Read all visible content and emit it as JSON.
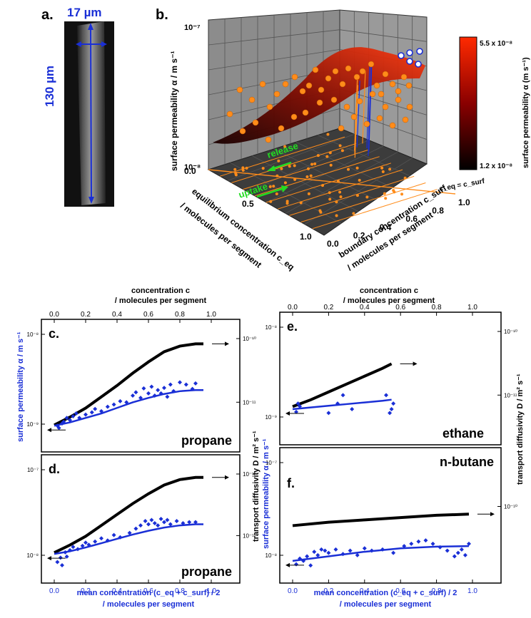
{
  "panel_a": {
    "letter": "a.",
    "width_label": "17 µm",
    "length_label": "130 µm"
  },
  "panel_b": {
    "letter": "b.",
    "z_axis_label": "surface permeability α / m s⁻¹",
    "z_top": "10⁻⁷",
    "z_bottom": "10⁻⁸",
    "x_axis_label": "equilibrium concentration c_eq",
    "x_axis_label2": "/ molecules per segment",
    "x_ticks": [
      "0.0",
      "0.5",
      "1.0"
    ],
    "y_axis_label": "boundary concentration c_surf",
    "y_axis_label2": "/ molecules per segment",
    "y_ticks": [
      "0.0",
      "0.2",
      "0.4",
      "0.6",
      "0.8",
      "1.0"
    ],
    "diag_label": "c_eq = c_surf",
    "release_label": "release",
    "uptake_label": "uptake",
    "colorbar_title": "surface permeability α (m s⁻¹)",
    "colorbar_max": "5.5 x 10⁻⁸",
    "colorbar_min": "1.2 x 10⁻⁸",
    "colors": {
      "surface_low": "#1a0000",
      "surface_high": "#ff2a00",
      "points": "#ff8c1a",
      "drops": "#1a2fd6"
    }
  },
  "top_axis_left": {
    "title": "concentration c",
    "subtitle": "/ molecules per segment",
    "ticks": [
      "0.0",
      "0.2",
      "0.4",
      "0.6",
      "0.8",
      "1.0"
    ]
  },
  "top_axis_right": {
    "title": "concentration c",
    "subtitle": "/ molecules per segment",
    "ticks": [
      "0.0",
      "0.2",
      "0.4",
      "0.6",
      "0.8",
      "1.0"
    ]
  },
  "bottom_axis_left": {
    "title": "mean concentration (c_eq + c_surf) / 2",
    "subtitle": "/ molecules per segment",
    "ticks": [
      "0.0",
      "0.2",
      "0.4",
      "0.6",
      "0.8",
      "1.0"
    ]
  },
  "bottom_axis_right": {
    "title": "mean concentration (c_eq + c_surf) / 2",
    "subtitle": "/ molecules per segment",
    "ticks": [
      "0.0",
      "0.2",
      "0.4",
      "0.6",
      "0.8",
      "1.0"
    ]
  },
  "left_ylabel": "surface permeability α / m s⁻¹",
  "mid_ylabel_blue": "surface permeability α / m s⁻¹",
  "mid_ylabel_black": "transport diffusivity D / m² s⁻¹",
  "right_ylabel": "transport diffusivity D / m² s⁻¹",
  "chart_data": [
    {
      "type": "scatter",
      "panel": "c.",
      "molecule": "propane",
      "left_ticks": [
        "10⁻⁸",
        "10⁻⁹"
      ],
      "right_ticks": [
        "10⁻¹⁰",
        "10⁻¹¹"
      ],
      "black_curve": {
        "x": [
          0.0,
          0.1,
          0.2,
          0.3,
          0.4,
          0.5,
          0.6,
          0.7,
          0.8,
          0.9,
          0.95
        ],
        "y": [
          0.18,
          0.25,
          0.33,
          0.43,
          0.53,
          0.64,
          0.74,
          0.83,
          0.88,
          0.9,
          0.9
        ]
      },
      "blue_fit": {
        "x": [
          0.0,
          0.1,
          0.2,
          0.3,
          0.4,
          0.5,
          0.6,
          0.7,
          0.8,
          0.9,
          0.95
        ],
        "y": [
          -0.72,
          -0.66,
          -0.58,
          -0.5,
          -0.4,
          -0.3,
          -0.22,
          -0.15,
          -0.1,
          -0.08,
          -0.08
        ]
      },
      "blue_points": {
        "x": [
          0.02,
          0.03,
          0.05,
          0.06,
          0.08,
          0.1,
          0.12,
          0.14,
          0.16,
          0.2,
          0.24,
          0.26,
          0.3,
          0.34,
          0.38,
          0.42,
          0.46,
          0.5,
          0.52,
          0.55,
          0.57,
          0.6,
          0.62,
          0.64,
          0.66,
          0.68,
          0.7,
          0.72,
          0.74,
          0.76,
          0.8,
          0.84,
          0.88,
          0.9
        ],
        "y": [
          -0.72,
          -0.76,
          -0.68,
          -0.65,
          -0.58,
          -0.62,
          -0.55,
          -0.5,
          -0.58,
          -0.52,
          -0.48,
          -0.42,
          -0.46,
          -0.38,
          -0.34,
          -0.28,
          -0.3,
          -0.18,
          -0.12,
          -0.22,
          -0.05,
          -0.14,
          -0.02,
          -0.18,
          -0.08,
          -0.14,
          -0.04,
          -0.2,
          0.02,
          -0.1,
          0.06,
          0.02,
          -0.06,
          0.04
        ]
      }
    },
    {
      "type": "scatter",
      "panel": "d.",
      "molecule": "propane",
      "left_ticks": [
        "10⁻⁷",
        "10⁻⁸"
      ],
      "right_ticks": [
        "10⁻¹⁰",
        "10⁻¹¹"
      ],
      "black_curve": {
        "x": [
          0.0,
          0.1,
          0.2,
          0.3,
          0.4,
          0.5,
          0.6,
          0.7,
          0.8,
          0.9,
          0.95
        ],
        "y": [
          0.22,
          0.29,
          0.37,
          0.47,
          0.57,
          0.67,
          0.76,
          0.84,
          0.89,
          0.91,
          0.91
        ]
      },
      "blue_fit": {
        "x": [
          0.0,
          0.1,
          0.2,
          0.3,
          0.4,
          0.5,
          0.6,
          0.7,
          0.8,
          0.9,
          0.95
        ],
        "y": [
          -0.65,
          -0.6,
          -0.53,
          -0.45,
          -0.37,
          -0.29,
          -0.22,
          -0.16,
          -0.12,
          -0.1,
          -0.1
        ]
      },
      "blue_points": {
        "x": [
          0.02,
          0.04,
          0.05,
          0.07,
          0.08,
          0.1,
          0.12,
          0.15,
          0.18,
          0.2,
          0.22,
          0.26,
          0.3,
          0.34,
          0.38,
          0.42,
          0.48,
          0.52,
          0.55,
          0.58,
          0.6,
          0.62,
          0.64,
          0.66,
          0.68,
          0.7,
          0.72,
          0.74,
          0.78,
          0.82,
          0.86,
          0.9
        ],
        "y": [
          -0.8,
          -0.72,
          -0.86,
          -0.62,
          -0.7,
          -0.58,
          -0.52,
          -0.56,
          -0.5,
          -0.44,
          -0.48,
          -0.42,
          -0.36,
          -0.4,
          -0.3,
          -0.34,
          -0.26,
          -0.18,
          -0.12,
          -0.04,
          -0.1,
          -0.02,
          -0.08,
          -0.12,
          0.0,
          -0.06,
          -0.02,
          -0.1,
          -0.04,
          -0.08,
          -0.06,
          -0.06
        ]
      }
    },
    {
      "type": "scatter",
      "panel": "e.",
      "molecule": "ethane",
      "left_ticks": [
        "10⁻⁸",
        "10⁻⁹"
      ],
      "right_ticks": [
        "10⁻¹⁰",
        "10⁻¹¹"
      ],
      "black_curve": {
        "x": [
          0.0,
          0.1,
          0.2,
          0.3,
          0.4,
          0.5,
          0.55
        ],
        "y": [
          0.28,
          0.34,
          0.41,
          0.48,
          0.55,
          0.62,
          0.66
        ]
      },
      "blue_fit": {
        "x": [
          0.0,
          0.1,
          0.2,
          0.3,
          0.4,
          0.5,
          0.55
        ],
        "y": [
          -0.55,
          -0.52,
          -0.49,
          -0.46,
          -0.43,
          -0.4,
          -0.38
        ]
      },
      "blue_points": {
        "x": [
          0.02,
          0.03,
          0.04,
          0.2,
          0.25,
          0.28,
          0.33,
          0.52,
          0.54,
          0.55,
          0.56
        ],
        "y": [
          -0.6,
          -0.45,
          -0.5,
          -0.62,
          -0.45,
          -0.3,
          -0.55,
          -0.3,
          -0.62,
          -0.55,
          -0.45
        ]
      }
    },
    {
      "type": "scatter",
      "panel": "f.",
      "molecule": "n-butane",
      "left_ticks": [
        "10⁻⁷",
        "10⁻⁸"
      ],
      "right_ticks": [
        "10⁻¹⁰"
      ],
      "black_curve": {
        "x": [
          0.0,
          0.2,
          0.4,
          0.6,
          0.8,
          0.98
        ],
        "y": [
          0.44,
          0.47,
          0.49,
          0.51,
          0.53,
          0.54
        ]
      },
      "blue_fit": {
        "x": [
          0.0,
          0.2,
          0.4,
          0.6,
          0.8,
          0.98
        ],
        "y": [
          -0.8,
          -0.72,
          -0.64,
          -0.58,
          -0.55,
          -0.54
        ]
      },
      "blue_points": {
        "x": [
          0.02,
          0.04,
          0.06,
          0.08,
          0.1,
          0.12,
          0.14,
          0.16,
          0.18,
          0.2,
          0.24,
          0.28,
          0.32,
          0.36,
          0.4,
          0.44,
          0.5,
          0.56,
          0.62,
          0.66,
          0.7,
          0.74,
          0.78,
          0.82,
          0.86,
          0.9,
          0.92,
          0.94,
          0.96,
          0.98
        ],
        "y": [
          -0.86,
          -0.76,
          -0.8,
          -0.72,
          -0.88,
          -0.64,
          -0.7,
          -0.6,
          -0.62,
          -0.66,
          -0.6,
          -0.68,
          -0.62,
          -0.7,
          -0.58,
          -0.62,
          -0.6,
          -0.66,
          -0.54,
          -0.5,
          -0.46,
          -0.44,
          -0.5,
          -0.56,
          -0.62,
          -0.72,
          -0.66,
          -0.6,
          -0.7,
          -0.5
        ]
      }
    }
  ]
}
